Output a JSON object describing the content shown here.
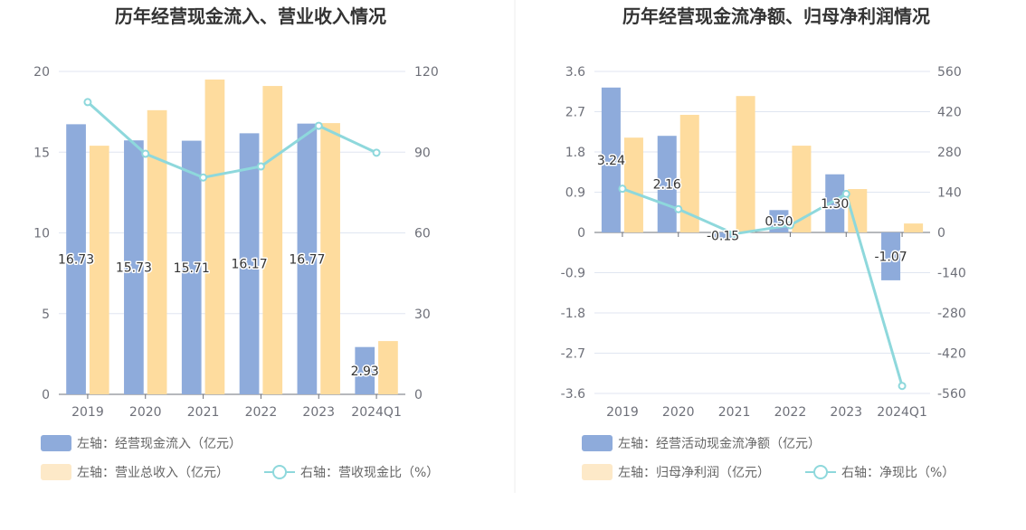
{
  "colors": {
    "bar_primary": "#8eabdb",
    "bar_secondary": "#fedc9e",
    "line": "#8ed8dc",
    "legend_secondary": "#fde9c8"
  },
  "chart_data": [
    {
      "type": "bar",
      "title": "历年经营现金流入、营业收入情况",
      "categories": [
        "2019",
        "2020",
        "2021",
        "2022",
        "2023",
        "2024Q1"
      ],
      "left_axis": {
        "min": 0,
        "max": 20,
        "ticks": [
          "0",
          "5",
          "10",
          "15",
          "20"
        ]
      },
      "right_axis": {
        "min": 0,
        "max": 120,
        "ticks": [
          "0",
          "30",
          "60",
          "90",
          "120"
        ]
      },
      "series": [
        {
          "name": "左轴：经营现金流入（亿元）",
          "axis": "left",
          "kind": "bar",
          "values": [
            16.73,
            15.73,
            15.71,
            16.17,
            16.77,
            2.93
          ],
          "labels": [
            "16.73",
            "15.73",
            "15.71",
            "16.17",
            "16.77",
            "2.93"
          ]
        },
        {
          "name": "左轴：营业总收入（亿元）",
          "axis": "left",
          "kind": "bar",
          "values": [
            15.4,
            17.6,
            19.5,
            19.1,
            16.8,
            3.3
          ]
        },
        {
          "name": "右轴：营收现金比（%）",
          "axis": "right",
          "kind": "line",
          "values": [
            108.6,
            89.4,
            80.6,
            84.7,
            99.8,
            89.8
          ]
        }
      ]
    },
    {
      "type": "bar",
      "title": "历年经营现金流净额、归母净利润情况",
      "categories": [
        "2019",
        "2020",
        "2021",
        "2022",
        "2023",
        "2024Q1"
      ],
      "left_axis": {
        "min": -3.6,
        "max": 3.6,
        "ticks": [
          "-3.6",
          "-2.7",
          "-1.8",
          "-0.9",
          "0",
          "0.9",
          "1.8",
          "2.7",
          "3.6"
        ]
      },
      "right_axis": {
        "min": -560,
        "max": 560,
        "ticks": [
          "-560",
          "-420",
          "-280",
          "-140",
          "0",
          "140",
          "280",
          "420",
          "560"
        ]
      },
      "series": [
        {
          "name": "左轴：经营活动现金流净额（亿元）",
          "axis": "left",
          "kind": "bar",
          "values": [
            3.24,
            2.16,
            -0.15,
            0.5,
            1.3,
            -1.07
          ],
          "labels": [
            "3.24",
            "2.16",
            "-0.15",
            "0.50",
            "1.30",
            "-1.07"
          ]
        },
        {
          "name": "左轴：归母净利润（亿元）",
          "axis": "left",
          "kind": "bar",
          "values": [
            2.12,
            2.63,
            3.05,
            1.94,
            0.97,
            0.2
          ]
        },
        {
          "name": "右轴：净现比（%）",
          "axis": "right",
          "kind": "line",
          "values": [
            152,
            81,
            -5,
            25,
            134,
            -534
          ]
        }
      ]
    }
  ]
}
